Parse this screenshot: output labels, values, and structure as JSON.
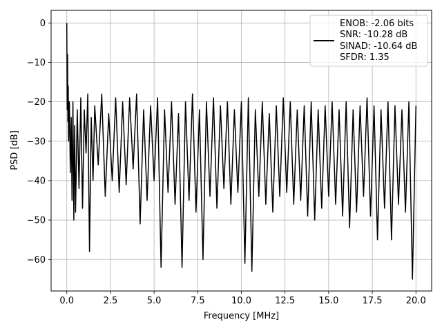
{
  "chart_data": {
    "type": "line",
    "title": "",
    "xlabel": "Frequency [MHz]",
    "ylabel": "PSD [dB]",
    "xlim": [
      -0.9,
      20.9
    ],
    "ylim": [
      -68,
      3.2
    ],
    "xticks": [
      0.0,
      2.5,
      5.0,
      7.5,
      10.0,
      12.5,
      15.0,
      17.5,
      20.0
    ],
    "xtick_labels": [
      "0.0",
      "2.5",
      "5.0",
      "7.5",
      "10.0",
      "12.5",
      "15.0",
      "17.5",
      "20.0"
    ],
    "yticks": [
      0,
      -10,
      -20,
      -30,
      -40,
      -50,
      -60
    ],
    "ytick_labels": [
      "0",
      "−10",
      "−20",
      "−30",
      "−40",
      "−50",
      "−60"
    ],
    "grid": true,
    "legend_position": "top-right",
    "series_color": "#000000",
    "legend": {
      "entries": [
        "ENOB: -2.06 bits",
        "SNR: -10.28 dB",
        "SINAD: -10.64 dB",
        "SFDR: 1.35"
      ]
    },
    "series": [
      {
        "x": [
          0.0,
          0.02,
          0.04,
          0.06,
          0.08,
          0.1,
          0.15,
          0.2,
          0.25,
          0.3,
          0.35,
          0.4,
          0.45,
          0.5,
          0.6,
          0.7,
          0.8,
          0.9,
          1.0,
          1.1,
          1.2,
          1.3,
          1.4,
          1.5,
          1.6,
          1.8,
          2.0,
          2.2,
          2.4,
          2.6,
          2.8,
          3.0,
          3.2,
          3.4,
          3.6,
          3.8,
          4.0,
          4.2,
          4.4,
          4.6,
          4.8,
          5.0,
          5.2,
          5.4,
          5.6,
          5.8,
          6.0,
          6.2,
          6.4,
          6.6,
          6.8,
          7.0,
          7.2,
          7.4,
          7.6,
          7.8,
          8.0,
          8.2,
          8.4,
          8.6,
          8.8,
          9.0,
          9.2,
          9.4,
          9.6,
          9.8,
          10.0,
          10.2,
          10.4,
          10.6,
          10.8,
          11.0,
          11.2,
          11.4,
          11.6,
          11.8,
          12.0,
          12.2,
          12.4,
          12.6,
          12.8,
          13.0,
          13.2,
          13.4,
          13.6,
          13.8,
          14.0,
          14.2,
          14.4,
          14.6,
          14.8,
          15.0,
          15.2,
          15.4,
          15.6,
          15.8,
          16.0,
          16.2,
          16.4,
          16.6,
          16.8,
          17.0,
          17.2,
          17.4,
          17.6,
          17.8,
          18.0,
          18.2,
          18.4,
          18.6,
          18.8,
          19.0,
          19.2,
          19.4,
          19.6,
          19.8,
          20.0
        ],
        "y": [
          0,
          -22,
          -8,
          -25,
          -16,
          -30,
          -20,
          -38,
          -24,
          -45,
          -20,
          -50,
          -26,
          -48,
          -22,
          -42,
          -19,
          -47,
          -22,
          -33,
          -18,
          -58,
          -24,
          -40,
          -21,
          -36,
          -18,
          -44,
          -23,
          -40,
          -19,
          -43,
          -20,
          -41,
          -19,
          -37,
          -18,
          -51,
          -22,
          -45,
          -21,
          -40,
          -19,
          -62,
          -22,
          -43,
          -20,
          -46,
          -23,
          -62,
          -20,
          -45,
          -18,
          -48,
          -22,
          -60,
          -20,
          -44,
          -19,
          -47,
          -21,
          -42,
          -20,
          -46,
          -22,
          -43,
          -20,
          -61,
          -19,
          -63,
          -22,
          -44,
          -20,
          -46,
          -23,
          -48,
          -21,
          -44,
          -19,
          -43,
          -20,
          -46,
          -22,
          -45,
          -21,
          -49,
          -20,
          -50,
          -22,
          -47,
          -21,
          -44,
          -20,
          -46,
          -22,
          -49,
          -20,
          -52,
          -22,
          -48,
          -21,
          -44,
          -19,
          -49,
          -21,
          -55,
          -22,
          -47,
          -20,
          -55,
          -21,
          -46,
          -22,
          -48,
          -20,
          -65,
          -21
        ]
      }
    ]
  }
}
